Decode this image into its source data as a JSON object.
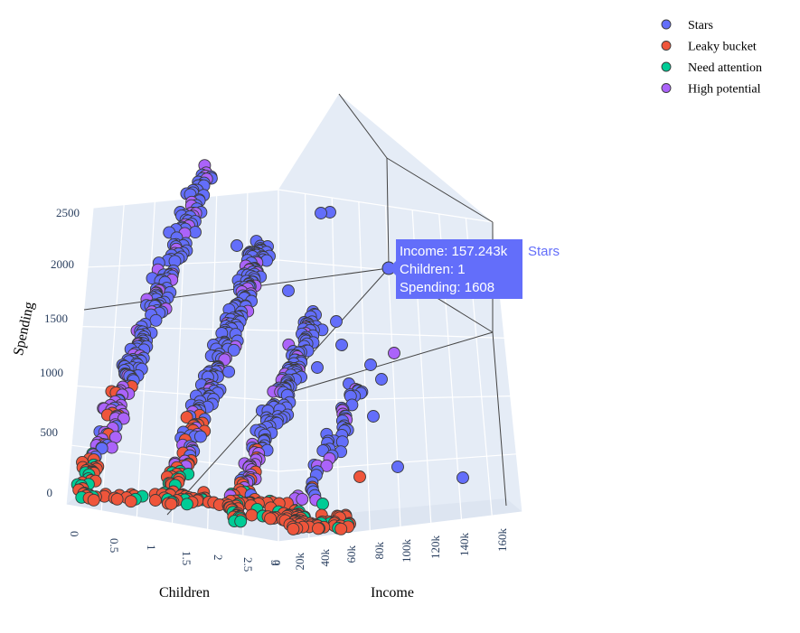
{
  "chart_data": {
    "type": "scatter",
    "title": "",
    "axes": {
      "x": {
        "label": "Children",
        "range": [
          0,
          3
        ],
        "ticks": [
          "0",
          "0.5",
          "1",
          "1.5",
          "2",
          "2.5",
          "3"
        ]
      },
      "y": {
        "label": "Income",
        "range": [
          0,
          160000
        ],
        "ticks": [
          "0",
          "20k",
          "40k",
          "60k",
          "80k",
          "100k",
          "120k",
          "140k",
          "160k"
        ]
      },
      "z": {
        "label": "Spending",
        "range": [
          0,
          2500
        ],
        "ticks": [
          "0",
          "500",
          "1000",
          "1500",
          "2000",
          "2500"
        ]
      }
    },
    "legend": {
      "placement": "top-right"
    },
    "series": [
      {
        "name": "Stars",
        "color": "#636efa"
      },
      {
        "name": "Leaky bucket",
        "color": "#ef553b"
      },
      {
        "name": "Need attention",
        "color": "#00cc96"
      },
      {
        "name": "High potential",
        "color": "#ab63fa"
      }
    ],
    "hover": {
      "series": "Stars",
      "lines": [
        "Income: 157.243k",
        "Children: 1",
        "Spending: 1608"
      ],
      "point": {
        "children": 1,
        "income": 157243,
        "spending": 1608
      }
    }
  }
}
